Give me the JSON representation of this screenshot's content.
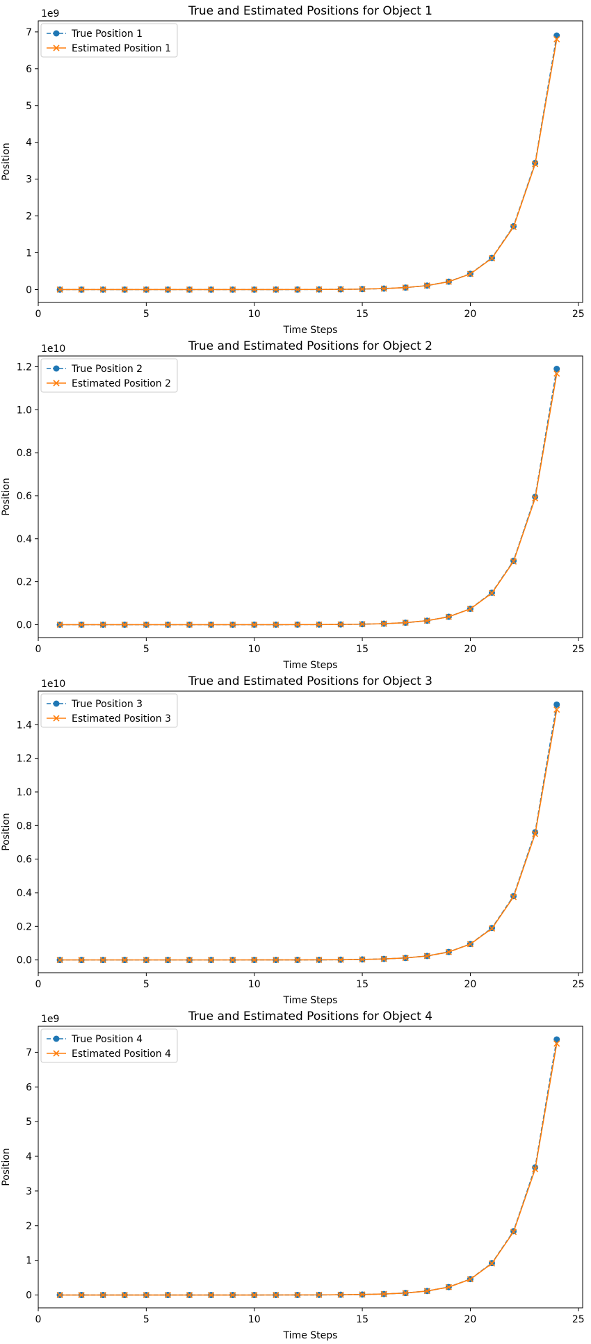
{
  "chart_data": [
    {
      "type": "line",
      "title": "True and Estimated Positions for Object 1",
      "xlabel": "Time Steps",
      "ylabel": "Position",
      "offset_label": "1e9",
      "scale": 1000000000,
      "xlim": [
        0,
        25.2
      ],
      "ylim": [
        -0.35,
        7.3
      ],
      "xticks": [
        0,
        5,
        10,
        15,
        20,
        25
      ],
      "yticks": [
        0,
        1,
        2,
        3,
        4,
        5,
        6,
        7
      ],
      "yticklabels": [
        "0",
        "1",
        "2",
        "3",
        "4",
        "5",
        "6",
        "7"
      ],
      "legend_position": "upper-left",
      "grid": false,
      "x": [
        1,
        2,
        3,
        4,
        5,
        6,
        7,
        8,
        9,
        10,
        11,
        12,
        13,
        14,
        15,
        16,
        17,
        18,
        19,
        20,
        21,
        22,
        23,
        24
      ],
      "series": [
        {
          "name": "True Position 1",
          "color": "#1f77b4",
          "style": "dashed",
          "marker": "circle",
          "values": [
            8e-07,
            1.6e-06,
            3.3e-06,
            6.6e-06,
            1.3e-05,
            2.6e-05,
            5.3e-05,
            0.000105,
            0.00021,
            0.00042,
            0.00084,
            0.0017,
            0.0034,
            0.0067,
            0.0135,
            0.027,
            0.054,
            0.108,
            0.215,
            0.43,
            0.86,
            1.72,
            3.44,
            6.9
          ]
        },
        {
          "name": "Estimated Position 1",
          "color": "#ff7f0e",
          "style": "solid",
          "marker": "x",
          "values": [
            8e-07,
            1.6e-06,
            3.3e-06,
            6.6e-06,
            1.3e-05,
            2.6e-05,
            5.3e-05,
            0.000105,
            0.00021,
            0.00042,
            0.00084,
            0.0017,
            0.0034,
            0.0067,
            0.0135,
            0.027,
            0.054,
            0.108,
            0.213,
            0.425,
            0.85,
            1.7,
            3.41,
            6.8
          ]
        }
      ]
    },
    {
      "type": "line",
      "title": "True and Estimated Positions for Object 2",
      "xlabel": "Time Steps",
      "ylabel": "Position",
      "offset_label": "1e10",
      "scale": 10000000000,
      "xlim": [
        0,
        25.2
      ],
      "ylim": [
        -0.06,
        1.25
      ],
      "xticks": [
        0,
        5,
        10,
        15,
        20,
        25
      ],
      "yticks": [
        0,
        0.2,
        0.4,
        0.6,
        0.8,
        1.0,
        1.2
      ],
      "yticklabels": [
        "0.0",
        "0.2",
        "0.4",
        "0.6",
        "0.8",
        "1.0",
        "1.2"
      ],
      "legend_position": "upper-left",
      "grid": false,
      "x": [
        1,
        2,
        3,
        4,
        5,
        6,
        7,
        8,
        9,
        10,
        11,
        12,
        13,
        14,
        15,
        16,
        17,
        18,
        19,
        20,
        21,
        22,
        23,
        24
      ],
      "series": [
        {
          "name": "True Position 2",
          "color": "#1f77b4",
          "style": "dashed",
          "marker": "circle",
          "values": [
            1.4e-07,
            2.8e-07,
            5.7e-07,
            1.1e-06,
            2.3e-06,
            4.5e-06,
            9e-06,
            1.8e-05,
            3.6e-05,
            7.3e-05,
            0.000146,
            0.00029,
            0.00058,
            0.00116,
            0.0023,
            0.0047,
            0.0093,
            0.0186,
            0.037,
            0.074,
            0.149,
            0.297,
            0.595,
            1.19
          ]
        },
        {
          "name": "Estimated Position 2",
          "color": "#ff7f0e",
          "style": "solid",
          "marker": "x",
          "values": [
            1.4e-07,
            2.8e-07,
            5.7e-07,
            1.1e-06,
            2.3e-06,
            4.5e-06,
            9e-06,
            1.8e-05,
            3.6e-05,
            7.3e-05,
            0.000146,
            0.00029,
            0.00058,
            0.00116,
            0.0023,
            0.0047,
            0.0093,
            0.0186,
            0.0368,
            0.0735,
            0.147,
            0.294,
            0.588,
            1.168
          ]
        }
      ]
    },
    {
      "type": "line",
      "title": "True and Estimated Positions for Object 3",
      "xlabel": "Time Steps",
      "ylabel": "Position",
      "offset_label": "1e10",
      "scale": 10000000000,
      "xlim": [
        0,
        25.2
      ],
      "ylim": [
        -0.076,
        1.6
      ],
      "xticks": [
        0,
        5,
        10,
        15,
        20,
        25
      ],
      "yticks": [
        0,
        0.2,
        0.4,
        0.6,
        0.8,
        1.0,
        1.2,
        1.4
      ],
      "yticklabels": [
        "0.0",
        "0.2",
        "0.4",
        "0.6",
        "0.8",
        "1.0",
        "1.2",
        "1.4"
      ],
      "legend_position": "upper-left",
      "grid": false,
      "x": [
        1,
        2,
        3,
        4,
        5,
        6,
        7,
        8,
        9,
        10,
        11,
        12,
        13,
        14,
        15,
        16,
        17,
        18,
        19,
        20,
        21,
        22,
        23,
        24
      ],
      "series": [
        {
          "name": "True Position 3",
          "color": "#1f77b4",
          "style": "dashed",
          "marker": "circle",
          "values": [
            1.8e-07,
            3.6e-07,
            7.2e-07,
            1.4e-06,
            2.9e-06,
            5.8e-06,
            1.16e-05,
            2.3e-05,
            4.6e-05,
            9.3e-05,
            0.000185,
            0.00037,
            0.00074,
            0.00148,
            0.003,
            0.006,
            0.0119,
            0.0237,
            0.0475,
            0.095,
            0.19,
            0.38,
            0.76,
            1.52
          ]
        },
        {
          "name": "Estimated Position 3",
          "color": "#ff7f0e",
          "style": "solid",
          "marker": "x",
          "values": [
            1.8e-07,
            3.6e-07,
            7.2e-07,
            1.4e-06,
            2.9e-06,
            5.8e-06,
            1.16e-05,
            2.3e-05,
            4.6e-05,
            9.3e-05,
            0.000185,
            0.00037,
            0.00074,
            0.00148,
            0.003,
            0.006,
            0.0119,
            0.0237,
            0.047,
            0.094,
            0.187,
            0.375,
            0.75,
            1.49
          ]
        }
      ]
    },
    {
      "type": "line",
      "title": "True and Estimated Positions for Object 4",
      "xlabel": "Time Steps",
      "ylabel": "Position",
      "offset_label": "1e9",
      "scale": 1000000000,
      "xlim": [
        0,
        25.2
      ],
      "ylim": [
        -0.37,
        7.75
      ],
      "xticks": [
        0,
        5,
        10,
        15,
        20,
        25
      ],
      "yticks": [
        0,
        1,
        2,
        3,
        4,
        5,
        6,
        7
      ],
      "yticklabels": [
        "0",
        "1",
        "2",
        "3",
        "4",
        "5",
        "6",
        "7"
      ],
      "legend_position": "upper-left",
      "grid": false,
      "x": [
        1,
        2,
        3,
        4,
        5,
        6,
        7,
        8,
        9,
        10,
        11,
        12,
        13,
        14,
        15,
        16,
        17,
        18,
        19,
        20,
        21,
        22,
        23,
        24
      ],
      "series": [
        {
          "name": "True Position 4",
          "color": "#1f77b4",
          "style": "dashed",
          "marker": "circle",
          "values": [
            9e-07,
            1.8e-06,
            3.5e-06,
            7e-06,
            1.4e-05,
            2.8e-05,
            5.6e-05,
            0.000112,
            0.000225,
            0.00045,
            0.0009,
            0.0018,
            0.0036,
            0.0072,
            0.0144,
            0.0288,
            0.0575,
            0.115,
            0.23,
            0.46,
            0.92,
            1.84,
            3.68,
            7.37
          ]
        },
        {
          "name": "Estimated Position 4",
          "color": "#ff7f0e",
          "style": "solid",
          "marker": "x",
          "values": [
            9e-07,
            1.8e-06,
            3.5e-06,
            7e-06,
            1.4e-05,
            2.8e-05,
            5.6e-05,
            0.000112,
            0.000225,
            0.00045,
            0.0009,
            0.0018,
            0.0036,
            0.0072,
            0.0144,
            0.0288,
            0.0575,
            0.115,
            0.228,
            0.455,
            0.91,
            1.82,
            3.63,
            7.25
          ]
        }
      ]
    }
  ]
}
